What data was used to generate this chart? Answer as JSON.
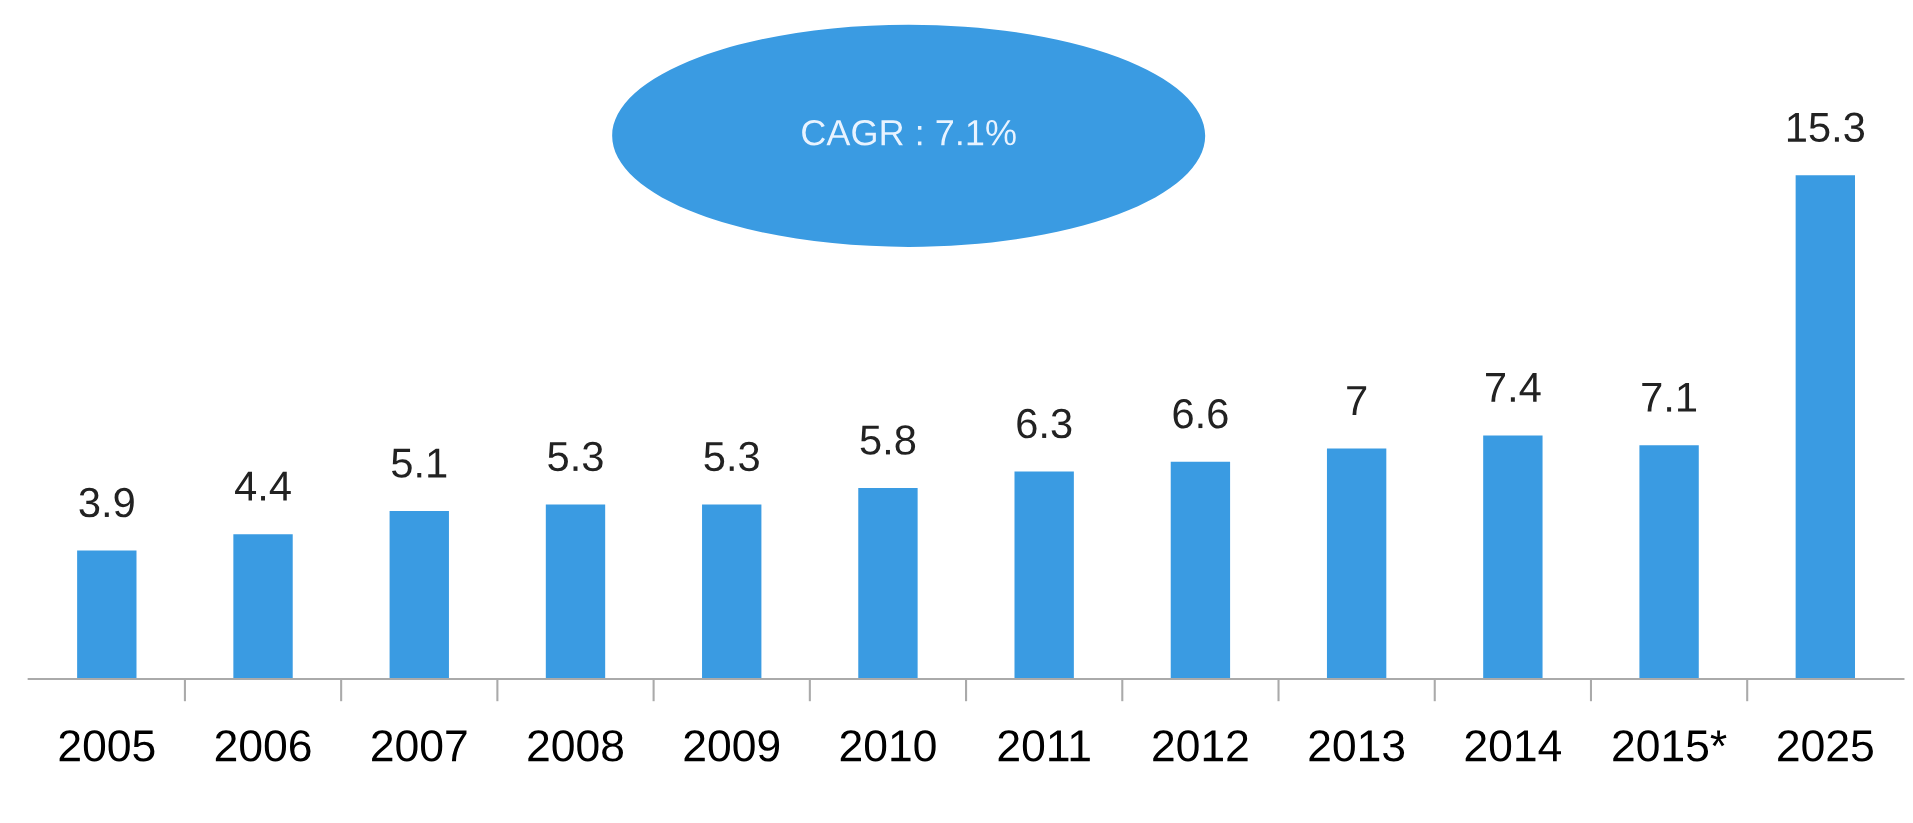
{
  "chart_data": {
    "type": "bar",
    "categories": [
      "2005",
      "2006",
      "2007",
      "2008",
      "2009",
      "2010",
      "2011",
      "2012",
      "2013",
      "2014",
      "2015*",
      "2025"
    ],
    "values": [
      3.9,
      4.4,
      5.1,
      5.3,
      5.3,
      5.8,
      6.3,
      6.6,
      7,
      7.4,
      7.1,
      15.3
    ],
    "color": "#3a9be2",
    "data_labels": true,
    "grid": false,
    "legend": false,
    "annotations": [
      "CAGR : 7.1%"
    ]
  }
}
